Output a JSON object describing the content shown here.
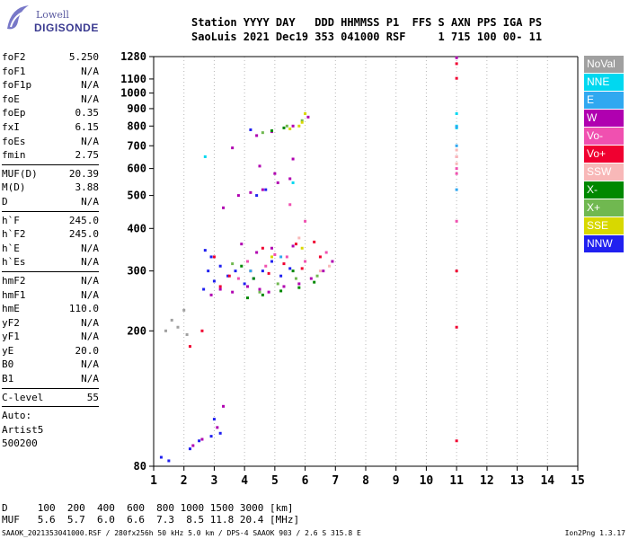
{
  "logo": {
    "line1": "Lowell",
    "line2": "DIGISONDE"
  },
  "header": {
    "line1": "Station YYYY DAY   DDD HHMMSS P1  FFS S AXN PPS IGA PS",
    "line2": "SaoLuis 2021 Dec19 353 041000 RSF     1 715 100 00- 11"
  },
  "params_a": [
    {
      "name": "foF2",
      "value": "5.250"
    },
    {
      "name": "foF1",
      "value": "N/A"
    },
    {
      "name": "foF1p",
      "value": "N/A"
    },
    {
      "name": "foE",
      "value": "N/A"
    },
    {
      "name": "foEp",
      "value": "0.35"
    },
    {
      "name": "fxI",
      "value": "6.15"
    },
    {
      "name": "foEs",
      "value": "N/A"
    },
    {
      "name": "fmin",
      "value": "2.75"
    }
  ],
  "params_b": [
    {
      "name": "MUF(D)",
      "value": "20.39"
    },
    {
      "name": "M(D)",
      "value": "3.88"
    },
    {
      "name": "D",
      "value": "N/A"
    }
  ],
  "params_c": [
    {
      "name": "h`F",
      "value": "245.0"
    },
    {
      "name": "h`F2",
      "value": "245.0"
    },
    {
      "name": "h`E",
      "value": "N/A"
    },
    {
      "name": "h`Es",
      "value": "N/A"
    }
  ],
  "params_d": [
    {
      "name": "hmF2",
      "value": "N/A"
    },
    {
      "name": "hmF1",
      "value": "N/A"
    },
    {
      "name": "hmE",
      "value": "110.0"
    },
    {
      "name": "yF2",
      "value": "N/A"
    },
    {
      "name": "yF1",
      "value": "N/A"
    },
    {
      "name": "yE",
      "value": "20.0"
    },
    {
      "name": "B0",
      "value": "N/A"
    },
    {
      "name": "B1",
      "value": "N/A"
    }
  ],
  "clevel": {
    "name": "C-level",
    "value": "55"
  },
  "auto": [
    "Auto:",
    "Artist5",
    "500200"
  ],
  "legend": [
    {
      "label": "NoVal",
      "color": "#a0a0a0"
    },
    {
      "label": "NNE",
      "color": "#00d8f0"
    },
    {
      "label": "E",
      "color": "#30a8f0"
    },
    {
      "label": "W",
      "color": "#b000b0"
    },
    {
      "label": "Vo-",
      "color": "#f050b0"
    },
    {
      "label": "Vo+",
      "color": "#f00030"
    },
    {
      "label": "SSW",
      "color": "#f8b8b8"
    },
    {
      "label": "X-",
      "color": "#008800"
    },
    {
      "label": "X+",
      "color": "#70b850"
    },
    {
      "label": "SSE",
      "color": "#d8d800"
    },
    {
      "label": "NNW",
      "color": "#2020f0"
    }
  ],
  "dist_table": {
    "line1": "D     100  200  400  600  800 1000 1500 3000 [km]",
    "line2": "MUF   5.6  5.7  6.0  6.6  7.3  8.5 11.8 20.4 [MHz]"
  },
  "footer": "SAAOK_2021353041000.RSF / 280fx256h 50 kHz 5.0 km / DPS-4 SAAOK 903 / 2.6 S 315.8 E",
  "footer_right": "Ion2Png 1.3.17",
  "chart_data": {
    "type": "scatter",
    "title": "",
    "xlabel": "",
    "ylabel": "",
    "xlim": [
      1,
      15
    ],
    "ylim": [
      80,
      1280
    ],
    "y_scale": "log",
    "xticks": [
      1,
      2,
      3,
      4,
      5,
      6,
      7,
      8,
      9,
      10,
      11,
      12,
      13,
      14,
      15
    ],
    "yticks": [
      80,
      200,
      300,
      400,
      500,
      600,
      700,
      800,
      900,
      1000,
      1100,
      1280
    ],
    "grid": "dotted-vertical",
    "series": [
      {
        "color": "#2020f0",
        "points": [
          [
            2.65,
            265
          ],
          [
            2.8,
            300
          ],
          [
            3.0,
            280
          ],
          [
            3.2,
            310
          ],
          [
            3.45,
            290
          ],
          [
            3.7,
            300
          ],
          [
            4.0,
            275
          ],
          [
            4.3,
            285
          ],
          [
            4.6,
            300
          ],
          [
            4.9,
            320
          ],
          [
            5.2,
            290
          ],
          [
            5.5,
            305
          ],
          [
            2.7,
            345
          ],
          [
            2.9,
            330
          ],
          [
            2.2,
            90
          ],
          [
            2.5,
            95
          ],
          [
            2.9,
            98
          ],
          [
            3.0,
            110
          ],
          [
            3.2,
            100
          ],
          [
            1.25,
            85
          ],
          [
            1.5,
            83
          ],
          [
            4.4,
            500
          ],
          [
            4.7,
            520
          ],
          [
            4.2,
            780
          ]
        ]
      },
      {
        "color": "#b000b0",
        "points": [
          [
            2.9,
            255
          ],
          [
            3.2,
            265
          ],
          [
            3.6,
            260
          ],
          [
            4.1,
            270
          ],
          [
            4.5,
            265
          ],
          [
            4.8,
            260
          ],
          [
            5.3,
            270
          ],
          [
            5.8,
            275
          ],
          [
            6.2,
            285
          ],
          [
            6.6,
            300
          ],
          [
            6.9,
            320
          ],
          [
            3.9,
            360
          ],
          [
            4.4,
            340
          ],
          [
            4.9,
            350
          ],
          [
            5.6,
            355
          ],
          [
            3.3,
            460
          ],
          [
            3.8,
            500
          ],
          [
            4.2,
            510
          ],
          [
            4.6,
            520
          ],
          [
            5.1,
            545
          ],
          [
            5.5,
            560
          ],
          [
            4.5,
            610
          ],
          [
            5.0,
            580
          ],
          [
            5.6,
            640
          ],
          [
            2.3,
            92
          ],
          [
            2.6,
            96
          ],
          [
            3.1,
            104
          ],
          [
            3.3,
            120
          ],
          [
            4.4,
            750
          ],
          [
            4.9,
            770
          ],
          [
            5.6,
            800
          ],
          [
            6.1,
            850
          ],
          [
            3.6,
            690
          ],
          [
            11.0,
            1270
          ]
        ]
      },
      {
        "color": "#f00030",
        "points": [
          [
            3.5,
            290
          ],
          [
            4.2,
            300
          ],
          [
            4.8,
            295
          ],
          [
            5.3,
            315
          ],
          [
            5.9,
            305
          ],
          [
            6.5,
            330
          ],
          [
            3.2,
            270
          ],
          [
            4.6,
            350
          ],
          [
            5.7,
            360
          ],
          [
            6.3,
            365
          ],
          [
            2.2,
            180
          ],
          [
            2.6,
            200
          ],
          [
            3.0,
            330
          ],
          [
            11.0,
            1220
          ],
          [
            11.0,
            1105
          ],
          [
            11.0,
            205
          ],
          [
            11.0,
            95
          ],
          [
            11.0,
            300
          ]
        ]
      },
      {
        "color": "#f050b0",
        "points": [
          [
            3.8,
            285
          ],
          [
            4.7,
            310
          ],
          [
            5.4,
            330
          ],
          [
            6.0,
            320
          ],
          [
            6.7,
            340
          ],
          [
            4.1,
            320
          ],
          [
            5.0,
            335
          ],
          [
            11.0,
            600
          ],
          [
            11.0,
            580
          ],
          [
            11.0,
            420
          ],
          [
            11.0,
            650
          ],
          [
            5.5,
            470
          ],
          [
            6.0,
            420
          ]
        ]
      },
      {
        "color": "#008800",
        "points": [
          [
            4.1,
            250
          ],
          [
            4.6,
            255
          ],
          [
            5.2,
            262
          ],
          [
            5.8,
            268
          ],
          [
            6.3,
            278
          ],
          [
            4.3,
            285
          ],
          [
            5.6,
            300
          ],
          [
            3.9,
            310
          ],
          [
            4.9,
            775
          ],
          [
            5.3,
            790
          ]
        ]
      },
      {
        "color": "#70b850",
        "points": [
          [
            4.5,
            260
          ],
          [
            5.1,
            275
          ],
          [
            5.7,
            285
          ],
          [
            6.4,
            290
          ],
          [
            3.6,
            315
          ],
          [
            4.6,
            765
          ],
          [
            5.4,
            800
          ],
          [
            5.9,
            830
          ]
        ]
      },
      {
        "color": "#d8d800",
        "points": [
          [
            5.5,
            785
          ],
          [
            5.9,
            820
          ],
          [
            6.0,
            870
          ],
          [
            5.8,
            800
          ],
          [
            4.9,
            330
          ],
          [
            5.9,
            350
          ]
        ]
      },
      {
        "color": "#00d8f0",
        "points": [
          [
            2.7,
            650
          ],
          [
            11.0,
            870
          ],
          [
            11.0,
            790
          ],
          [
            11.0,
            800
          ],
          [
            5.6,
            545
          ]
        ]
      },
      {
        "color": "#30a8f0",
        "points": [
          [
            11.0,
            795
          ],
          [
            11.0,
            520
          ],
          [
            11.0,
            700
          ],
          [
            4.2,
            300
          ],
          [
            5.2,
            330
          ]
        ]
      },
      {
        "color": "#f8b8b8",
        "points": [
          [
            11.0,
            650
          ],
          [
            11.0,
            620
          ],
          [
            11.0,
            680
          ],
          [
            6.5,
            300
          ],
          [
            6.8,
            310
          ],
          [
            5.8,
            375
          ]
        ]
      },
      {
        "color": "#a0a0a0",
        "points": [
          [
            1.4,
            200
          ],
          [
            1.8,
            205
          ],
          [
            2.1,
            195
          ],
          [
            1.6,
            215
          ],
          [
            2.0,
            230
          ]
        ]
      }
    ]
  }
}
